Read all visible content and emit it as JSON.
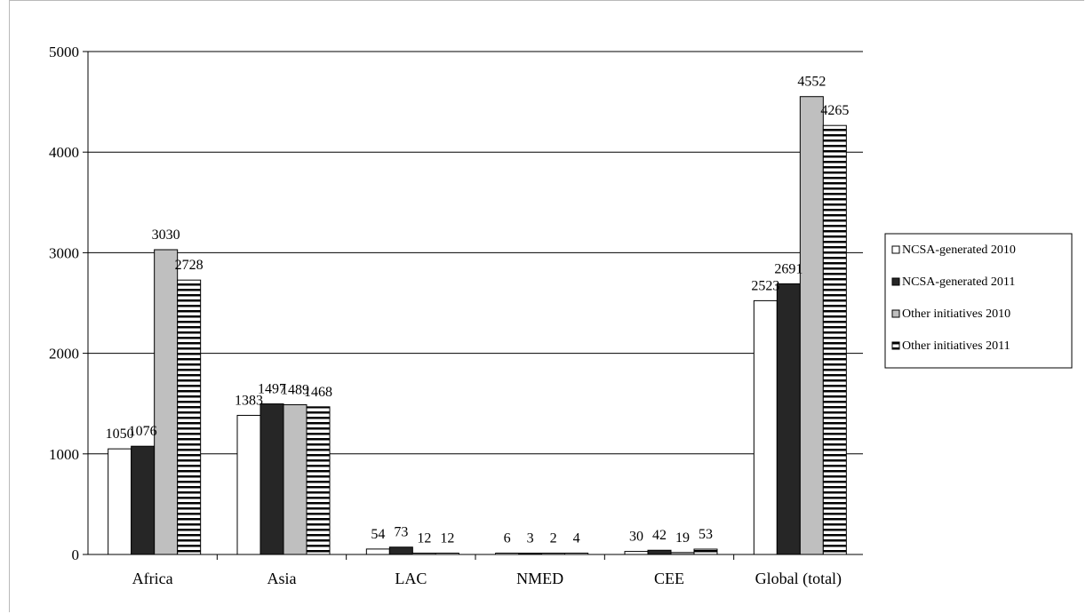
{
  "chart_data": {
    "type": "bar",
    "categories": [
      "Africa",
      "Asia",
      "LAC",
      "NMED",
      "CEE",
      "Global (total)"
    ],
    "series": [
      {
        "name": "NCSA-generated 2010",
        "values": [
          1050,
          1383,
          54,
          6,
          30,
          2523
        ],
        "fill": "#ffffff",
        "pattern": "none"
      },
      {
        "name": "NCSA-generated 2011",
        "values": [
          1076,
          1497,
          73,
          3,
          42,
          2691
        ],
        "fill": "#262626",
        "pattern": "none"
      },
      {
        "name": "Other initiatives 2010",
        "values": [
          3030,
          1489,
          12,
          2,
          19,
          4552
        ],
        "fill": "#bfbfbf",
        "pattern": "none"
      },
      {
        "name": "Other initiatives 2011",
        "values": [
          2728,
          1468,
          12,
          4,
          53,
          4265
        ],
        "fill": "#ffffff",
        "pattern": "horizontal-lines"
      }
    ],
    "value_labels": [
      [
        "1050",
        "1383",
        "54",
        "6",
        "30",
        "2523"
      ],
      [
        "1076",
        "1497",
        "73",
        "3",
        "42",
        "2691"
      ],
      [
        "3030",
        "1489",
        "12",
        "2",
        "19",
        "4552"
      ],
      [
        "2728",
        "1468",
        "12",
        "4",
        "53",
        "4265"
      ]
    ],
    "y_ticks": [
      "0",
      "1000",
      "2000",
      "3000",
      "4000",
      "5000"
    ],
    "ylim": [
      0,
      5000
    ],
    "grid": true,
    "legend_position": "right",
    "title": "",
    "xlabel": "",
    "ylabel": "",
    "colors": {
      "axis": "#000000",
      "grid": "#000000",
      "bar_edge": "#000000"
    }
  }
}
